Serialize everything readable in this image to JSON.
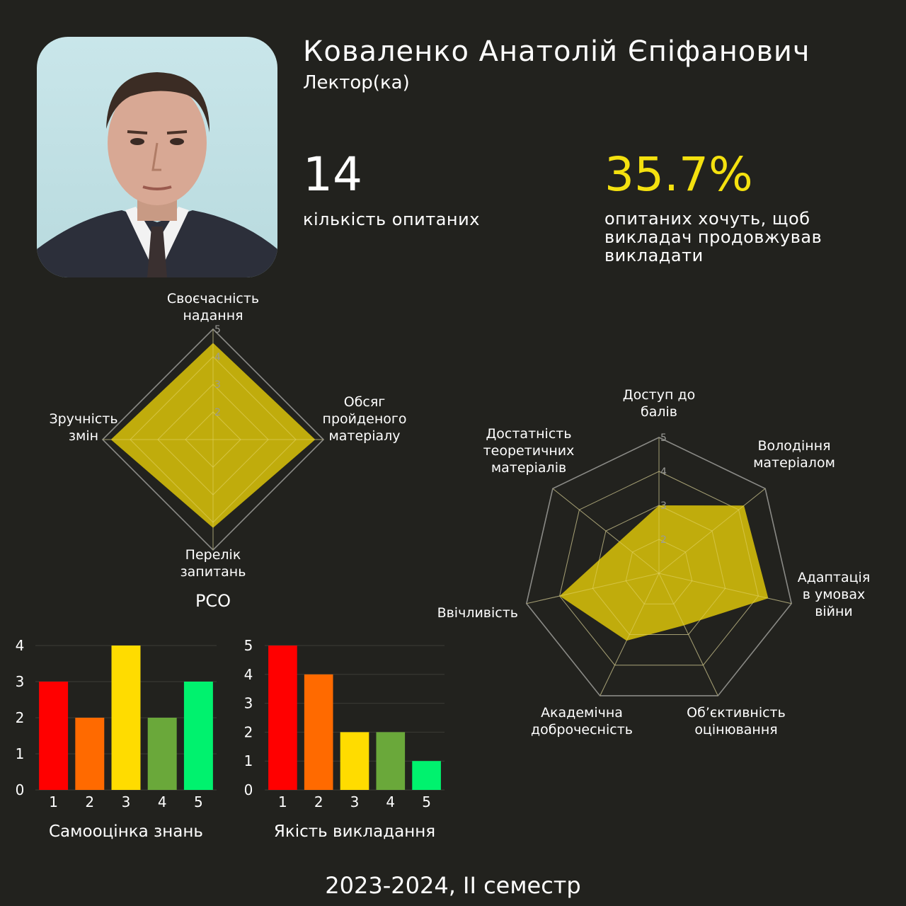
{
  "profile": {
    "name": "Коваленко Анатолій Єпіфанович",
    "role": "Лектор(ка)"
  },
  "stats": {
    "respondents": "14",
    "respondents_label": "кількість опитаних",
    "continue_pct": "35.7%",
    "continue_label": "опитаних хочуть, щоб викладач продовжував викладати"
  },
  "footer": "2023-2024, II семестр",
  "colors": {
    "background": "#22221e",
    "radar_fill": "#c9b40c",
    "accent": "#f4e10f",
    "bar_1": "#ff0000",
    "bar_2": "#ff6a00",
    "bar_3": "#ffdc00",
    "bar_4": "#6aa83a",
    "bar_5": "#00f26e"
  },
  "chart_data": [
    {
      "type": "radar",
      "title": "РСО",
      "axes": [
        "Своєчасність надання",
        "Обсяг пройденого матеріалу",
        "Перелік запитань",
        "Зручність змін"
      ],
      "values": [
        4.5,
        4.7,
        4.2,
        4.7
      ],
      "ticks": [
        "2",
        "3",
        "4",
        "5"
      ],
      "range": [
        1,
        5
      ]
    },
    {
      "type": "radar",
      "title": "",
      "axes": [
        "Доступ до балів",
        "Володіння матеріалом",
        "Адаптація в умовах війни",
        "Об’єктивність оцінювання",
        "Академічна доброчесність",
        "Ввічливість",
        "Достатність теоретичних матеріалів"
      ],
      "values": [
        3.0,
        4.2,
        4.3,
        2.7,
        3.2,
        4.0,
        2.5
      ],
      "ticks": [
        "2",
        "3",
        "4",
        "5"
      ],
      "range": [
        1,
        5
      ]
    },
    {
      "type": "bar",
      "title": "Самооцінка знань",
      "categories": [
        "1",
        "2",
        "3",
        "4",
        "5"
      ],
      "values": [
        3,
        2,
        4,
        2,
        3
      ],
      "yticks": [
        "0",
        "1",
        "2",
        "3",
        "4"
      ],
      "ylim": [
        0,
        4
      ]
    },
    {
      "type": "bar",
      "title": "Якість викладання",
      "categories": [
        "1",
        "2",
        "3",
        "4",
        "5"
      ],
      "values": [
        5,
        4,
        2,
        2,
        1
      ],
      "yticks": [
        "0",
        "1",
        "2",
        "3",
        "4",
        "5"
      ],
      "ylim": [
        0,
        5
      ]
    }
  ]
}
